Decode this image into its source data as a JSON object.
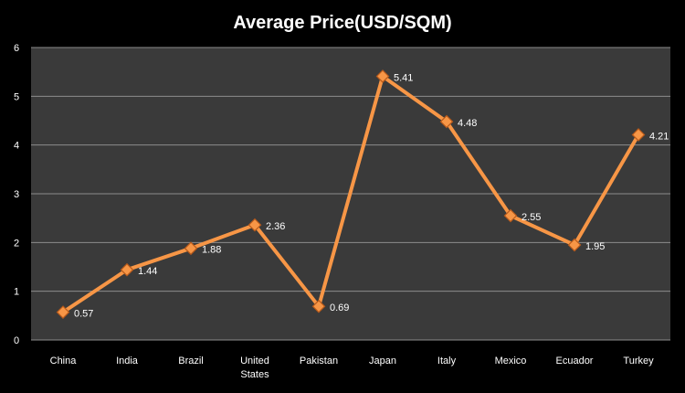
{
  "chart_data": {
    "type": "line",
    "title": "Average Price(USD/SQM)",
    "xlabel": "",
    "ylabel": "",
    "categories": [
      "China",
      "India",
      "Brazil",
      "United States",
      "Pakistan",
      "Japan",
      "Italy",
      "Mexico",
      "Ecuador",
      "Turkey"
    ],
    "category_lines": [
      [
        "China"
      ],
      [
        "India"
      ],
      [
        "Brazil"
      ],
      [
        "United",
        "States"
      ],
      [
        "Pakistan"
      ],
      [
        "Japan"
      ],
      [
        "Italy"
      ],
      [
        "Mexico"
      ],
      [
        "Ecuador"
      ],
      [
        "Turkey"
      ]
    ],
    "series": [
      {
        "values": [
          0.57,
          1.44,
          1.88,
          2.36,
          0.69,
          5.41,
          4.48,
          2.55,
          1.95,
          4.21
        ],
        "data_labels": [
          "0.57",
          "1.44",
          "1.88",
          "2.36",
          "0.69",
          "5.41",
          "4.48",
          "2.55",
          "1.95",
          "4.21"
        ],
        "color": "#F79646",
        "marker": "diamond"
      }
    ],
    "ylim": [
      0,
      6
    ],
    "yticks": [
      0,
      1,
      2,
      3,
      4,
      5,
      6
    ],
    "grid": true,
    "legend": "none"
  },
  "colors": {
    "background": "#000000",
    "plot_area": "#3a3a3a",
    "gridline": "#8c8c8c",
    "text": "#ffffff",
    "line": "#F79646",
    "marker_fill": "#F79646",
    "marker_edge": "#B85A1B"
  }
}
